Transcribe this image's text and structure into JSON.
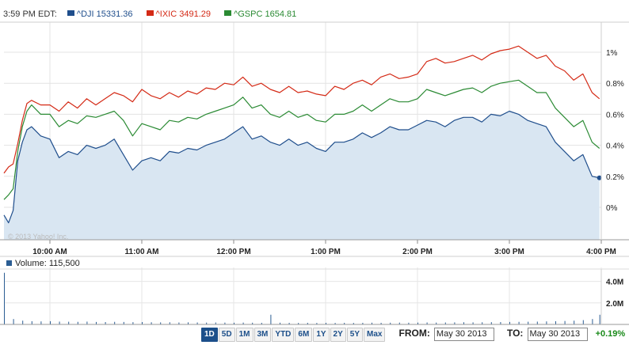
{
  "header": {
    "time": "3:59 PM EDT:",
    "legend": [
      {
        "symbol": "^DJI",
        "value": "15331.36",
        "color": "#1f4e8c"
      },
      {
        "symbol": "^IXIC",
        "value": "3491.29",
        "color": "#d42a16"
      },
      {
        "symbol": "^GSPC",
        "value": "1654.81",
        "color": "#2a8a33"
      }
    ]
  },
  "volume": {
    "label": "Volume:",
    "value": "115,500"
  },
  "watermark": "© 2013 Yahoo! Inc.",
  "controls": {
    "ranges": [
      "1D",
      "5D",
      "1M",
      "3M",
      "YTD",
      "6M",
      "1Y",
      "2Y",
      "5Y",
      "Max"
    ],
    "active": "1D",
    "from_label": "FROM:",
    "from_value": "May 30 2013",
    "to_label": "TO:",
    "to_value": "May 30 2013",
    "change": "+0.19%"
  },
  "chart_data": [
    {
      "type": "line",
      "x_ticks": [
        "10:00 AM",
        "11:00 AM",
        "12:00 PM",
        "1:00 PM",
        "2:00 PM",
        "3:00 PM",
        "4:00 PM"
      ],
      "y_ticks": [
        "1%",
        "0.8%",
        "0.6%",
        "0.4%",
        "0.2%",
        "0%"
      ],
      "ylim": [
        -0.2,
        1.16
      ],
      "x_unit": "hours",
      "xlim": [
        9.5,
        16.0
      ],
      "grid": true,
      "series": [
        {
          "name": "^IXIC",
          "color": "#d42a16",
          "x": [
            9.5,
            9.55,
            9.6,
            9.65,
            9.7,
            9.75,
            9.8,
            9.9,
            10.0,
            10.1,
            10.2,
            10.3,
            10.4,
            10.5,
            10.6,
            10.7,
            10.8,
            10.9,
            11.0,
            11.1,
            11.2,
            11.3,
            11.4,
            11.5,
            11.6,
            11.7,
            11.8,
            11.9,
            12.0,
            12.1,
            12.2,
            12.3,
            12.4,
            12.5,
            12.6,
            12.7,
            12.8,
            12.9,
            13.0,
            13.1,
            13.2,
            13.3,
            13.4,
            13.5,
            13.6,
            13.7,
            13.8,
            13.9,
            14.0,
            14.1,
            14.2,
            14.3,
            14.4,
            14.5,
            14.6,
            14.7,
            14.8,
            14.9,
            15.0,
            15.1,
            15.2,
            15.3,
            15.4,
            15.5,
            15.6,
            15.7,
            15.8,
            15.9,
            15.98
          ],
          "y": [
            0.22,
            0.26,
            0.28,
            0.41,
            0.56,
            0.67,
            0.69,
            0.66,
            0.66,
            0.62,
            0.68,
            0.64,
            0.7,
            0.66,
            0.7,
            0.74,
            0.72,
            0.68,
            0.76,
            0.72,
            0.7,
            0.74,
            0.71,
            0.75,
            0.73,
            0.77,
            0.76,
            0.8,
            0.79,
            0.84,
            0.78,
            0.8,
            0.76,
            0.74,
            0.78,
            0.74,
            0.75,
            0.73,
            0.72,
            0.78,
            0.76,
            0.8,
            0.82,
            0.79,
            0.84,
            0.86,
            0.83,
            0.84,
            0.86,
            0.94,
            0.96,
            0.93,
            0.94,
            0.96,
            0.98,
            0.95,
            0.99,
            1.01,
            1.02,
            1.04,
            1.0,
            0.96,
            0.98,
            0.91,
            0.88,
            0.82,
            0.86,
            0.74,
            0.7
          ]
        },
        {
          "name": "^GSPC",
          "color": "#2a8a33",
          "x": [
            9.5,
            9.55,
            9.6,
            9.65,
            9.7,
            9.75,
            9.8,
            9.9,
            10.0,
            10.1,
            10.2,
            10.3,
            10.4,
            10.5,
            10.6,
            10.7,
            10.8,
            10.9,
            11.0,
            11.1,
            11.2,
            11.3,
            11.4,
            11.5,
            11.6,
            11.7,
            11.8,
            11.9,
            12.0,
            12.1,
            12.2,
            12.3,
            12.4,
            12.5,
            12.6,
            12.7,
            12.8,
            12.9,
            13.0,
            13.1,
            13.2,
            13.3,
            13.4,
            13.5,
            13.6,
            13.7,
            13.8,
            13.9,
            14.0,
            14.1,
            14.2,
            14.3,
            14.4,
            14.5,
            14.6,
            14.7,
            14.8,
            14.9,
            15.0,
            15.1,
            15.2,
            15.3,
            15.4,
            15.5,
            15.6,
            15.7,
            15.8,
            15.9,
            15.98
          ],
          "y": [
            0.05,
            0.08,
            0.12,
            0.36,
            0.52,
            0.62,
            0.66,
            0.6,
            0.6,
            0.52,
            0.56,
            0.54,
            0.59,
            0.58,
            0.6,
            0.62,
            0.56,
            0.46,
            0.54,
            0.52,
            0.5,
            0.56,
            0.55,
            0.58,
            0.57,
            0.6,
            0.62,
            0.64,
            0.66,
            0.71,
            0.64,
            0.66,
            0.6,
            0.58,
            0.62,
            0.58,
            0.6,
            0.56,
            0.55,
            0.6,
            0.6,
            0.62,
            0.66,
            0.62,
            0.66,
            0.7,
            0.68,
            0.68,
            0.7,
            0.76,
            0.74,
            0.72,
            0.74,
            0.76,
            0.77,
            0.74,
            0.78,
            0.8,
            0.81,
            0.82,
            0.78,
            0.74,
            0.74,
            0.64,
            0.58,
            0.52,
            0.56,
            0.42,
            0.38
          ]
        },
        {
          "name": "^DJI",
          "color": "#1f4e8c",
          "fill": "#d9e6f2",
          "x": [
            9.5,
            9.55,
            9.6,
            9.65,
            9.7,
            9.75,
            9.8,
            9.9,
            10.0,
            10.1,
            10.2,
            10.3,
            10.4,
            10.5,
            10.6,
            10.7,
            10.8,
            10.9,
            11.0,
            11.1,
            11.2,
            11.3,
            11.4,
            11.5,
            11.6,
            11.7,
            11.8,
            11.9,
            12.0,
            12.1,
            12.2,
            12.3,
            12.4,
            12.5,
            12.6,
            12.7,
            12.8,
            12.9,
            13.0,
            13.1,
            13.2,
            13.3,
            13.4,
            13.5,
            13.6,
            13.7,
            13.8,
            13.9,
            14.0,
            14.1,
            14.2,
            14.3,
            14.4,
            14.5,
            14.6,
            14.7,
            14.8,
            14.9,
            15.0,
            15.1,
            15.2,
            15.3,
            15.4,
            15.5,
            15.6,
            15.7,
            15.8,
            15.9,
            15.98
          ],
          "y": [
            -0.05,
            -0.1,
            -0.02,
            0.3,
            0.42,
            0.5,
            0.52,
            0.46,
            0.44,
            0.32,
            0.36,
            0.34,
            0.4,
            0.38,
            0.4,
            0.44,
            0.34,
            0.24,
            0.3,
            0.32,
            0.3,
            0.36,
            0.35,
            0.38,
            0.37,
            0.4,
            0.42,
            0.44,
            0.48,
            0.52,
            0.44,
            0.46,
            0.42,
            0.4,
            0.44,
            0.4,
            0.42,
            0.38,
            0.36,
            0.42,
            0.42,
            0.44,
            0.48,
            0.45,
            0.48,
            0.52,
            0.5,
            0.5,
            0.53,
            0.56,
            0.55,
            0.52,
            0.56,
            0.58,
            0.58,
            0.55,
            0.6,
            0.59,
            0.62,
            0.6,
            0.56,
            0.54,
            0.52,
            0.42,
            0.36,
            0.3,
            0.34,
            0.2,
            0.19
          ]
        }
      ]
    },
    {
      "type": "bar",
      "title": "Volume",
      "y_ticks": [
        "4.0M",
        "2.0M"
      ],
      "ylim": [
        0,
        5000000
      ],
      "x_unit": "hours",
      "xlim": [
        9.5,
        16.0
      ],
      "bar_color": "#2b5d93",
      "x": [
        9.5,
        9.6,
        9.7,
        9.8,
        9.9,
        10.0,
        10.1,
        10.2,
        10.3,
        10.4,
        10.5,
        10.6,
        10.7,
        10.8,
        10.9,
        11.0,
        11.1,
        11.2,
        11.3,
        11.4,
        11.5,
        11.6,
        11.7,
        11.8,
        11.9,
        12.0,
        12.1,
        12.2,
        12.3,
        12.4,
        12.5,
        12.6,
        12.7,
        12.8,
        12.9,
        13.0,
        13.1,
        13.2,
        13.3,
        13.4,
        13.5,
        13.6,
        13.7,
        13.8,
        13.9,
        14.0,
        14.1,
        14.2,
        14.3,
        14.4,
        14.5,
        14.6,
        14.7,
        14.8,
        14.9,
        15.0,
        15.1,
        15.2,
        15.3,
        15.4,
        15.5,
        15.6,
        15.7,
        15.8,
        15.9,
        15.98
      ],
      "values": [
        4800000,
        500000,
        350000,
        300000,
        280000,
        300000,
        260000,
        250000,
        240000,
        260000,
        230000,
        220000,
        240000,
        230000,
        210000,
        220000,
        200000,
        190000,
        200000,
        180000,
        190000,
        180000,
        170000,
        180000,
        170000,
        160000,
        170000,
        160000,
        150000,
        900000,
        160000,
        150000,
        140000,
        150000,
        140000,
        150000,
        140000,
        150000,
        140000,
        150000,
        160000,
        150000,
        160000,
        170000,
        160000,
        170000,
        180000,
        170000,
        180000,
        190000,
        200000,
        190000,
        200000,
        210000,
        220000,
        230000,
        240000,
        250000,
        260000,
        280000,
        300000,
        320000,
        350000,
        400000,
        500000,
        900000
      ]
    }
  ]
}
